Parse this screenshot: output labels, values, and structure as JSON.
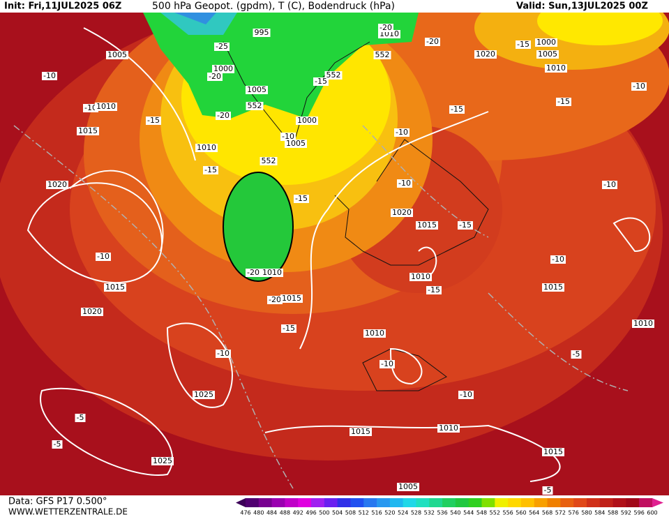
{
  "header": {
    "init": "Init: Fri,11JUL2025 06Z",
    "title": "500 hPa Geopot. (gpdm), T (C), Bodendruck (hPa)",
    "valid": "Valid: Sun,13JUL2025 00Z"
  },
  "map": {
    "labels": [
      "995",
      "1010",
      "-20",
      "-25",
      "552",
      "1005",
      "1000",
      "-20",
      "552",
      "-15",
      "1005",
      "552",
      "-10",
      "-10",
      "1010",
      "-15",
      "-20",
      "1000",
      "-10",
      "1005",
      "1015",
      "1010",
      "552",
      "-15",
      "1020",
      "-15",
      "1020",
      "-10",
      "-15",
      "-10",
      "-20",
      "-15",
      "1000",
      "1005",
      "1010",
      "1020",
      "-10",
      "-15",
      "-10",
      "1015",
      "-15",
      "-10",
      "-20",
      "1010",
      "1010",
      "-15",
      "1015",
      "-20",
      "1015",
      "1020",
      "-10",
      "1015",
      "1010",
      "-15",
      "1010",
      "-10",
      "-5",
      "-10",
      "1025",
      "-10",
      "-5",
      "1015",
      "1010",
      "-5",
      "1025",
      "1015",
      "1005",
      "-5"
    ]
  },
  "footer": {
    "data": "Data: GFS P17 0.500°",
    "site": "WWW.WETTERZENTRALE.DE"
  },
  "colorbar": {
    "labels": [
      476,
      480,
      484,
      488,
      492,
      496,
      500,
      504,
      508,
      512,
      516,
      520,
      524,
      528,
      532,
      536,
      540,
      544,
      548,
      552,
      556,
      560,
      564,
      568,
      572,
      576,
      580,
      584,
      588,
      592,
      596,
      600
    ]
  }
}
